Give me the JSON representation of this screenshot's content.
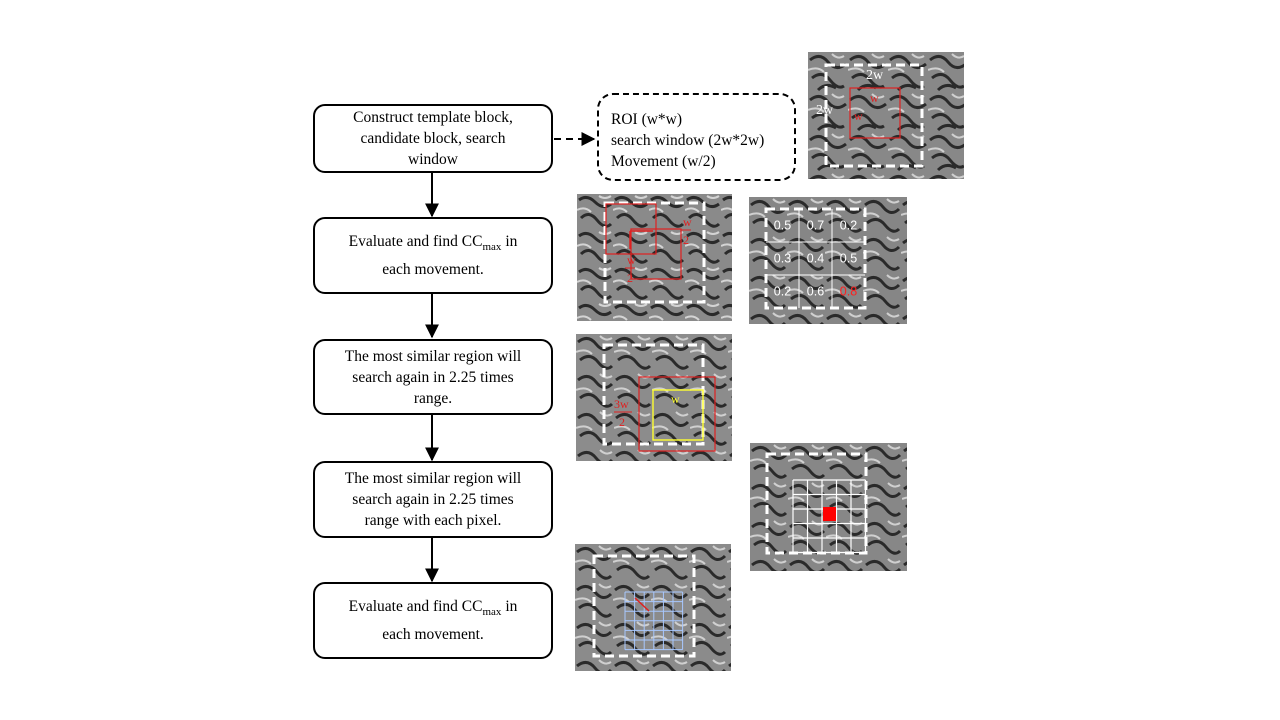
{
  "flowchart": {
    "steps": [
      {
        "line1": "Construct template block,",
        "line2": "candidate block, search",
        "line3": "window"
      },
      {
        "pre": "Evaluate and find CC",
        "sub": "max",
        "post": " in",
        "line2": "each movement."
      },
      {
        "line1": "The most similar region will",
        "line2": "search again in 2.25 times",
        "line3": "range."
      },
      {
        "line1": "The most similar region will",
        "line2": "search again in 2.25 times",
        "line3": "range with each pixel."
      },
      {
        "pre": "Evaluate and find CC",
        "sub": "max",
        "post": " in",
        "line2": "each movement."
      }
    ],
    "note": {
      "line1": "ROI (w*w)",
      "line2": "search window (2w*2w)",
      "line3": "Movement  (w/2)"
    }
  },
  "panels": {
    "p1": {
      "top_label": "2w",
      "side_label": "2w",
      "roi_top": "w",
      "roi_side": "w"
    },
    "p2": {
      "side_top": "w",
      "side_bottom": "2",
      "inner_top": "w",
      "inner_bottom": "2"
    },
    "p3": {
      "cells": [
        "0.5",
        "0.7",
        "0.2",
        "0.3",
        "0.4",
        "0.5",
        "0.2",
        "0.6",
        "0.8"
      ],
      "highlight_color": "#ff2020"
    },
    "p4": {
      "label_w": "w",
      "label_3w_top": "3w",
      "label_3w_bottom": "2"
    }
  },
  "colors": {
    "red": "#e02020",
    "yellow": "#ffff30",
    "white": "#ffffff",
    "grid_blue": "#a8c8ff"
  }
}
